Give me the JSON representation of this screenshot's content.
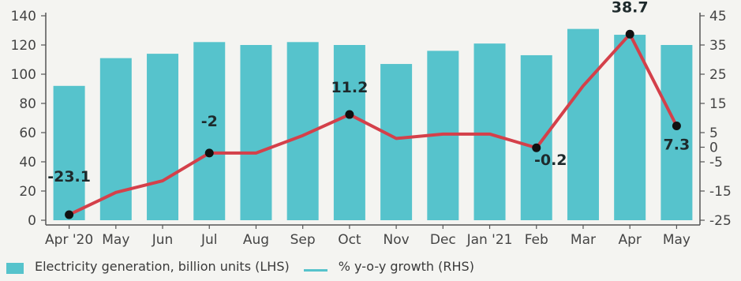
{
  "chart_data": {
    "type": "bar+line",
    "title": "",
    "categories": [
      "Apr '20",
      "May",
      "Jun",
      "Jul",
      "Aug",
      "Sep",
      "Oct",
      "Nov",
      "Dec",
      "Jan '21",
      "Feb",
      "Mar",
      "Apr",
      "May"
    ],
    "series": [
      {
        "name": "Electricity generation, billion units (LHS)",
        "type": "bar",
        "axis": "left",
        "values": [
          92,
          111,
          114,
          122,
          120,
          122,
          120,
          107,
          116,
          121,
          113,
          131,
          127,
          120
        ]
      },
      {
        "name": "% y-o-y growth (RHS)",
        "type": "line",
        "axis": "right",
        "values": [
          -23.1,
          -15.5,
          -11.5,
          -2,
          -2,
          4,
          11.2,
          3,
          4.5,
          4.5,
          -0.2,
          21,
          38.7,
          7.3
        ]
      }
    ],
    "left_axis": {
      "ylim": [
        0,
        140
      ],
      "ticks": [
        "0",
        "20",
        "40",
        "60",
        "80",
        "100",
        "120",
        "140"
      ],
      "tick_values": [
        0,
        20,
        40,
        60,
        80,
        100,
        120,
        140
      ]
    },
    "right_axis": {
      "ylim": [
        -25,
        45
      ],
      "ticks": [
        "-25",
        "-15",
        "-5",
        "0",
        "5",
        "15",
        "25",
        "35",
        "45"
      ],
      "tick_values": [
        -25,
        -15,
        -5,
        0,
        5,
        15,
        25,
        35,
        45
      ]
    },
    "x_tick_labels": [
      "Apr '20",
      "May",
      "Jun",
      "Jul",
      "Aug",
      "Sep",
      "Oct",
      "Nov",
      "Dec",
      "Jan '21",
      "Feb",
      "Mar",
      "Apr",
      "May"
    ],
    "data_labels": [
      {
        "index": 0,
        "text": "-23.1"
      },
      {
        "index": 3,
        "text": "-2"
      },
      {
        "index": 6,
        "text": "11.2"
      },
      {
        "index": 10,
        "text": "-0.2"
      },
      {
        "index": 12,
        "text": "38.7"
      },
      {
        "index": 13,
        "text": "7.3"
      }
    ],
    "marker_indices": [
      0,
      3,
      6,
      10,
      12,
      13
    ],
    "legend_position": "bottom-left",
    "colors": {
      "bar": "#56c3cc",
      "line": "#d4404a",
      "marker": "#111111",
      "axis": "#555555"
    }
  },
  "legend": {
    "bar_label": "Electricity generation, billion units (LHS)",
    "line_label": "% y-o-y growth (RHS)"
  }
}
